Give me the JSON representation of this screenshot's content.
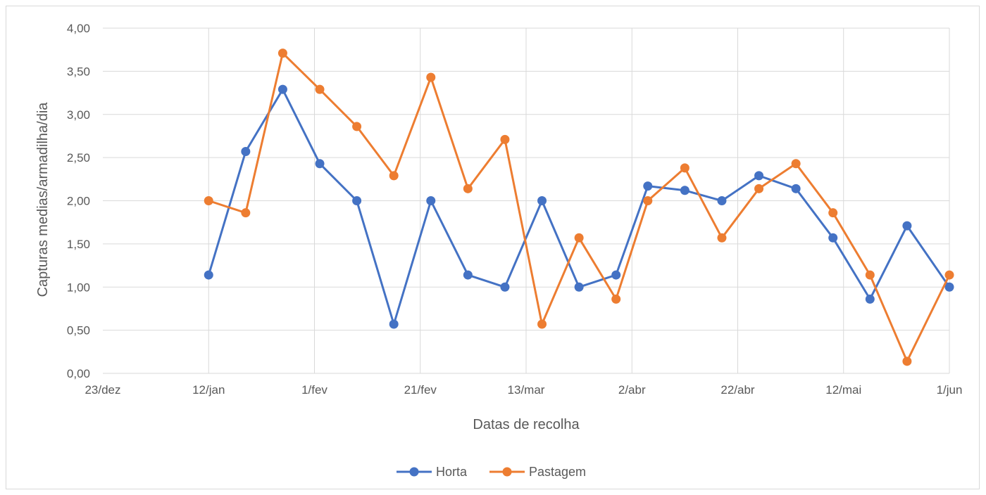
{
  "chart_data": {
    "type": "line",
    "title": "",
    "xlabel": "Datas de recolha",
    "ylabel": "Capturas medias/armadilha/dia",
    "x_tick_labels": [
      "23/dez",
      "12/jan",
      "1/fev",
      "21/fev",
      "13/mar",
      "2/abr",
      "22/abr",
      "12/mai",
      "1/jun"
    ],
    "y_tick_labels": [
      "0,00",
      "0,50",
      "1,00",
      "1,50",
      "2,00",
      "2,50",
      "3,00",
      "3,50",
      "4,00"
    ],
    "ylim": [
      0,
      4
    ],
    "xlim_days_from_first_tick": [
      0,
      160
    ],
    "grid": true,
    "legend_position": "bottom",
    "series": [
      {
        "name": "Horta",
        "color": "#4472C4",
        "x": [
          "12/jan",
          "19/jan",
          "26/jan",
          "2/fev",
          "9/fev",
          "16/fev",
          "23/fev",
          "2/mar",
          "9/mar",
          "16/mar",
          "23/mar",
          "30/mar",
          "5/abr",
          "12/abr",
          "19/abr",
          "26/abr",
          "3/mai",
          "10/mai",
          "17/mai",
          "24/mai",
          "1/jun"
        ],
        "x_days": [
          20,
          27,
          34,
          41,
          48,
          55,
          62,
          69,
          76,
          83,
          90,
          97,
          103,
          110,
          117,
          124,
          131,
          138,
          145,
          152,
          160
        ],
        "values": [
          1.14,
          2.57,
          3.29,
          2.43,
          2.0,
          0.57,
          2.0,
          1.14,
          1.0,
          2.0,
          1.0,
          1.14,
          2.17,
          2.12,
          2.0,
          2.29,
          2.14,
          1.57,
          0.86,
          1.71,
          1.0
        ]
      },
      {
        "name": "Pastagem",
        "color": "#ED7D31",
        "x": [
          "12/jan",
          "19/jan",
          "26/jan",
          "2/fev",
          "9/fev",
          "16/fev",
          "23/fev",
          "2/mar",
          "9/mar",
          "16/mar",
          "23/mar",
          "30/mar",
          "5/abr",
          "12/abr",
          "19/abr",
          "26/abr",
          "3/mai",
          "10/mai",
          "17/mai",
          "24/mai",
          "1/jun"
        ],
        "x_days": [
          20,
          27,
          34,
          41,
          48,
          55,
          62,
          69,
          76,
          83,
          90,
          97,
          103,
          110,
          117,
          124,
          131,
          138,
          145,
          152,
          160
        ],
        "values": [
          2.0,
          1.86,
          3.71,
          3.29,
          2.86,
          2.29,
          3.43,
          2.14,
          2.71,
          0.57,
          1.57,
          0.86,
          2.0,
          2.38,
          1.57,
          2.14,
          2.43,
          1.86,
          1.14,
          0.14,
          1.14
        ]
      }
    ]
  }
}
